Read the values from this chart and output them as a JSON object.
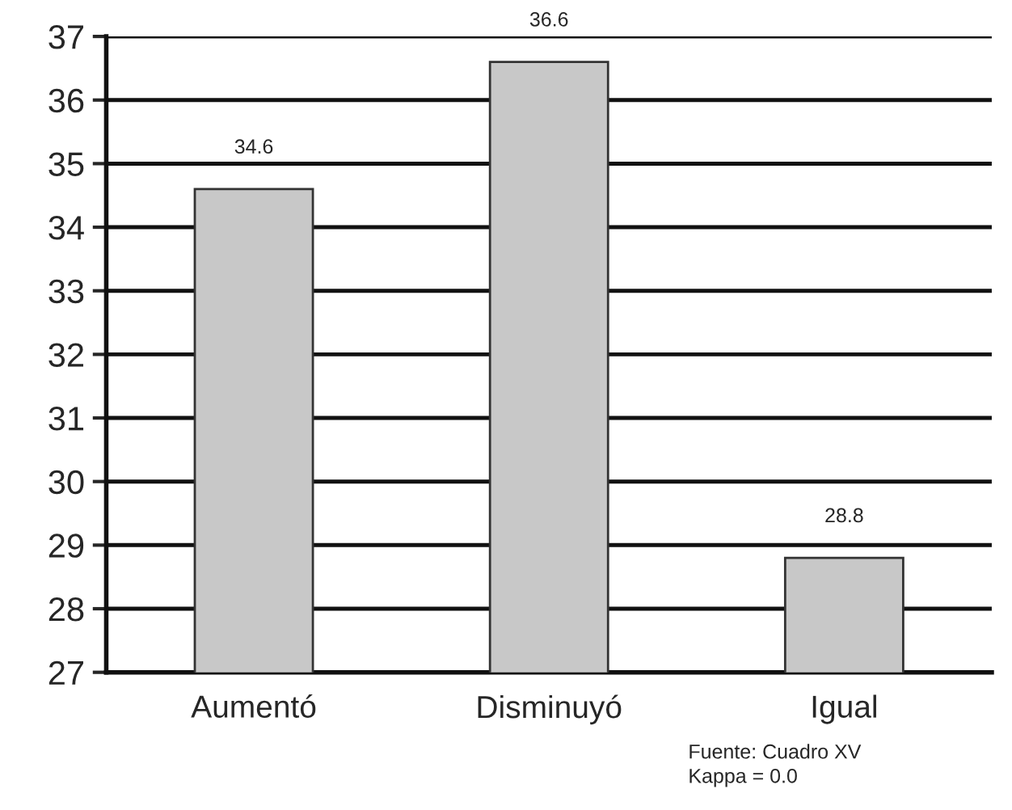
{
  "chart_data": {
    "type": "bar",
    "categories": [
      "Aumentó",
      "Disminuyó",
      "Igual"
    ],
    "values": [
      34.6,
      36.6,
      28.8
    ],
    "color": "#c8c8c8",
    "data_labels": true,
    "ylim": [
      27,
      37
    ],
    "yticks": [
      27,
      28,
      29,
      30,
      31,
      32,
      33,
      34,
      35,
      36,
      37
    ],
    "grid": "y",
    "annotations": [
      "Fuente: Cuadro XV",
      "Kappa = 0.0"
    ]
  }
}
